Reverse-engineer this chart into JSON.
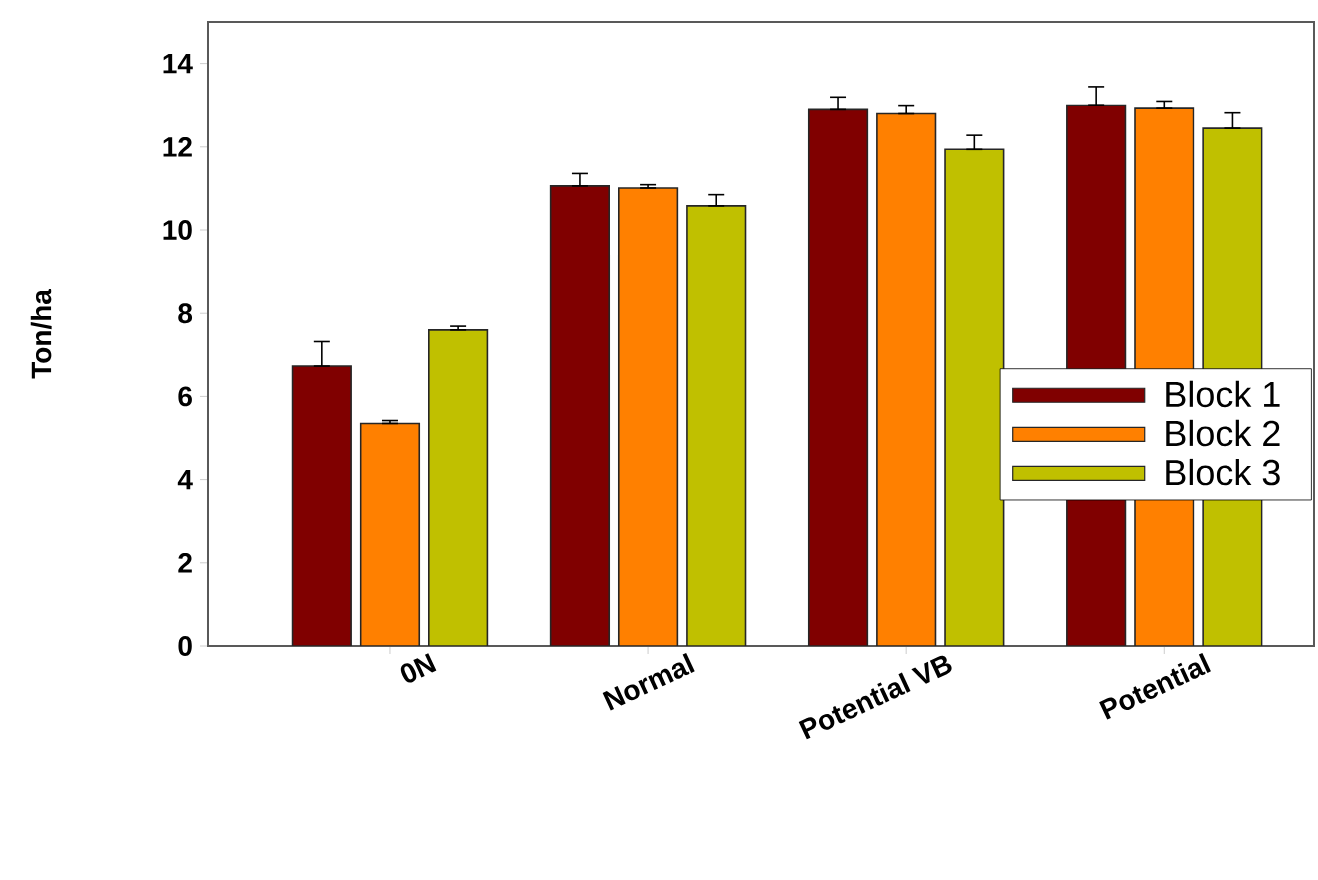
{
  "chart_data": {
    "type": "bar",
    "ylabel": "Ton/ha",
    "categories": [
      "0N",
      "Normal",
      "Potential VB",
      "Potential"
    ],
    "series": [
      {
        "name": "Block 1",
        "color": "#800000",
        "values": [
          6.73,
          11.06,
          12.9,
          13.0
        ],
        "errors": [
          [
            6.73,
            7.32
          ],
          [
            11.06,
            11.36
          ],
          [
            12.9,
            13.19
          ],
          [
            13.0,
            13.44
          ]
        ]
      },
      {
        "name": "Block 2",
        "color": "#ff8000",
        "values": [
          5.35,
          11.01,
          12.8,
          12.93
        ],
        "errors": [
          [
            5.35,
            5.42
          ],
          [
            11.01,
            11.09
          ],
          [
            12.8,
            12.99
          ],
          [
            12.93,
            13.09
          ]
        ]
      },
      {
        "name": "Block 3",
        "color": "#c0c000",
        "values": [
          7.6,
          10.58,
          11.94,
          12.45
        ],
        "errors": [
          [
            7.6,
            7.69
          ],
          [
            10.58,
            10.85
          ],
          [
            11.94,
            12.28
          ],
          [
            12.45,
            12.82
          ]
        ]
      }
    ],
    "ylim": [
      0,
      15
    ],
    "yticks": [
      0,
      2,
      4,
      6,
      8,
      10,
      12,
      14
    ],
    "legend": "bottom right",
    "grid": false
  }
}
